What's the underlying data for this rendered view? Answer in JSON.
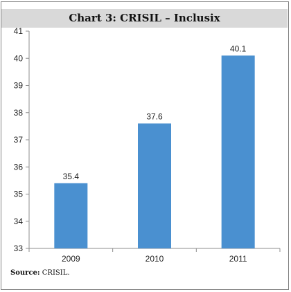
{
  "chart_data": {
    "type": "bar",
    "title": "Chart 3: CRISIL – Inclusix",
    "categories": [
      "2009",
      "2010",
      "2011"
    ],
    "values": [
      35.4,
      37.6,
      40.1
    ],
    "data_labels": [
      "35.4",
      "37.6",
      "40.1"
    ],
    "ylim": [
      33,
      41
    ],
    "yticks": [
      "33",
      "34",
      "35",
      "36",
      "37",
      "38",
      "39",
      "40",
      "41"
    ],
    "xlabel": "",
    "ylabel": "",
    "grid": false,
    "legend": "none",
    "bar_color": "#4a90d0",
    "title_band_color": "#d9d9d9"
  },
  "source": {
    "label": "Source:",
    "text": "CRISIL."
  }
}
